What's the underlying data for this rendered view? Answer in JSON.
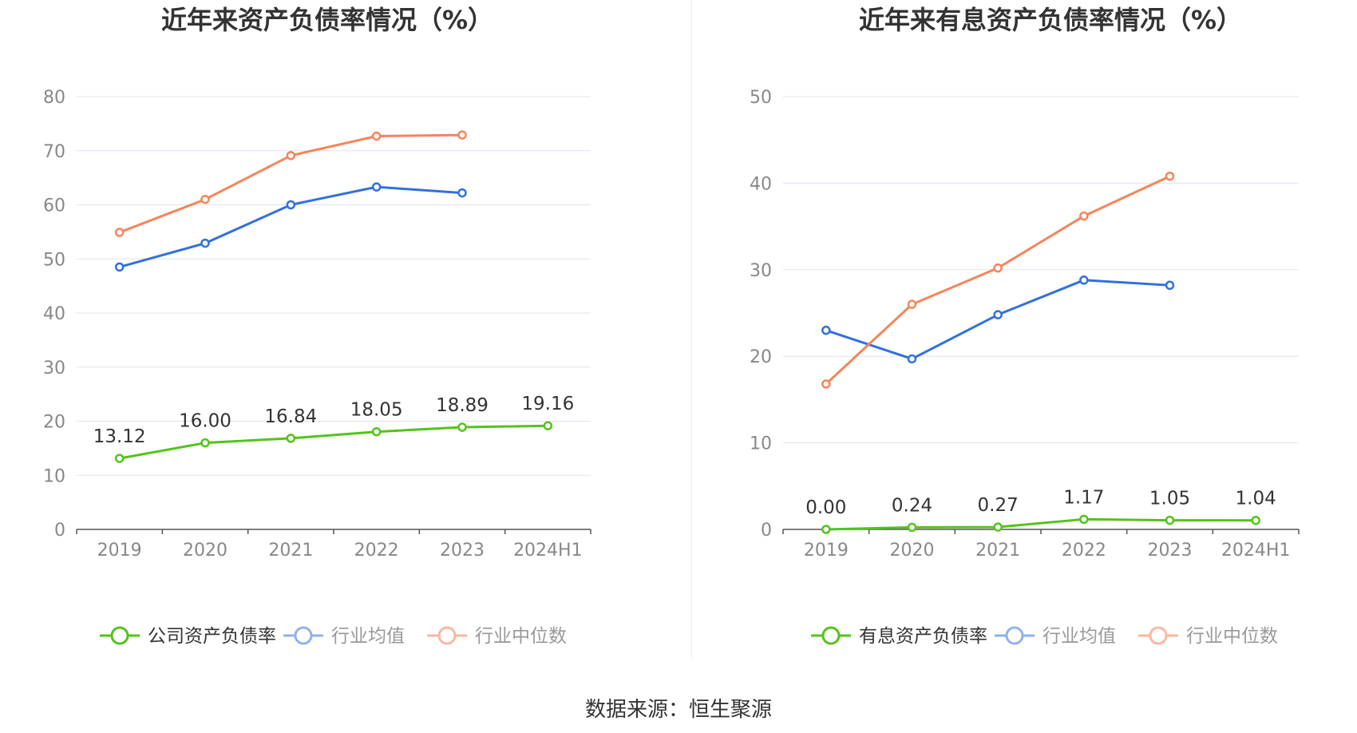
{
  "colors": {
    "company": "#52c41a",
    "avg": "#3270dd",
    "median": "#f5855a",
    "avg_legend": "#8fb1ee",
    "median_legend": "#f8b89e",
    "grid": "#dfe3ee",
    "axis": "#555555",
    "tick_text": "#888888",
    "title": "#333333",
    "label": "#333333"
  },
  "footer": {
    "source": "数据来源：恒生聚源"
  },
  "chart_data": [
    {
      "type": "line",
      "title": "近年来资产负债率情况（%）",
      "categories": [
        "2019",
        "2020",
        "2021",
        "2022",
        "2023",
        "2024H1"
      ],
      "ylim": [
        0,
        80
      ],
      "yticks": [
        "0",
        "10",
        "20",
        "30",
        "40",
        "50",
        "60",
        "70",
        "80"
      ],
      "grid": true,
      "legend_position": "bottom",
      "series": [
        {
          "name": "公司资产负债率",
          "color_key": "company",
          "values": [
            13.12,
            16.0,
            16.84,
            18.05,
            18.89,
            19.16
          ],
          "labels": [
            "13.12",
            "16.00",
            "16.84",
            "18.05",
            "18.89",
            "19.16"
          ]
        },
        {
          "name": "行业均值",
          "color_key": "avg",
          "values": [
            48.5,
            52.9,
            60.0,
            63.3,
            62.2,
            null
          ]
        },
        {
          "name": "行业中位数",
          "color_key": "median",
          "values": [
            54.9,
            61.0,
            69.1,
            72.7,
            72.9,
            null
          ]
        }
      ]
    },
    {
      "type": "line",
      "title": "近年来有息资产负债率情况（%）",
      "categories": [
        "2019",
        "2020",
        "2021",
        "2022",
        "2023",
        "2024H1"
      ],
      "ylim": [
        0,
        50
      ],
      "yticks": [
        "0",
        "10",
        "20",
        "30",
        "40",
        "50"
      ],
      "grid": true,
      "legend_position": "bottom",
      "series": [
        {
          "name": "有息资产负债率",
          "color_key": "company",
          "values": [
            0.0,
            0.24,
            0.27,
            1.17,
            1.05,
            1.04
          ],
          "labels": [
            "0.00",
            "0.24",
            "0.27",
            "1.17",
            "1.05",
            "1.04"
          ]
        },
        {
          "name": "行业均值",
          "color_key": "avg",
          "values": [
            23.0,
            19.7,
            24.8,
            28.8,
            28.2,
            null
          ]
        },
        {
          "name": "行业中位数",
          "color_key": "median",
          "values": [
            16.8,
            26.0,
            30.2,
            36.2,
            40.8,
            null
          ]
        }
      ]
    }
  ]
}
